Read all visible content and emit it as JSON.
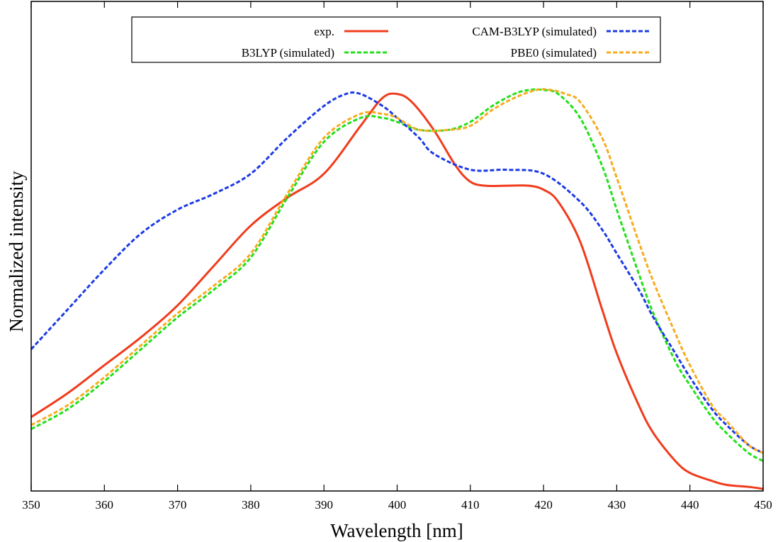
{
  "chart_data": {
    "type": "line",
    "title": "",
    "xlabel": "Wavelength [nm]",
    "ylabel": "Normalized intensity",
    "xlim": [
      350,
      450
    ],
    "ylim": [
      0.0,
      1.0
    ],
    "xticks": [
      "350",
      "360",
      "370",
      "380",
      "390",
      "400",
      "410",
      "420",
      "430",
      "440",
      "450"
    ],
    "grid": false,
    "legend": {
      "position": "top",
      "columns": 2
    },
    "series": [
      {
        "name": "exp.",
        "color": "#f03c1c",
        "dash": "solid",
        "x": [
          350,
          355,
          360,
          365,
          370,
          375,
          380,
          385,
          390,
          395,
          398,
          400,
          402,
          405,
          408,
          410,
          412,
          415,
          418,
          420,
          422,
          425,
          428,
          430,
          433,
          435,
          438,
          440,
          443,
          445,
          448,
          450
        ],
        "y": [
          0.18,
          0.24,
          0.31,
          0.38,
          0.46,
          0.56,
          0.66,
          0.73,
          0.79,
          0.91,
          0.98,
          0.99,
          0.97,
          0.9,
          0.81,
          0.77,
          0.76,
          0.76,
          0.76,
          0.75,
          0.72,
          0.62,
          0.45,
          0.34,
          0.21,
          0.14,
          0.07,
          0.04,
          0.02,
          0.01,
          0.005,
          0.0
        ]
      },
      {
        "name": "B3LYP (simulated)",
        "color": "#22e01a",
        "dash": "dashed",
        "x": [
          350,
          355,
          360,
          365,
          370,
          375,
          380,
          385,
          390,
          395,
          398,
          400,
          403,
          407,
          410,
          413,
          416,
          418,
          420,
          422,
          425,
          428,
          430,
          433,
          435,
          438,
          440,
          443,
          445,
          448,
          450
        ],
        "y": [
          0.15,
          0.2,
          0.27,
          0.35,
          0.43,
          0.5,
          0.58,
          0.73,
          0.87,
          0.93,
          0.93,
          0.92,
          0.9,
          0.9,
          0.92,
          0.96,
          0.99,
          1.0,
          1.0,
          0.99,
          0.93,
          0.81,
          0.7,
          0.54,
          0.44,
          0.32,
          0.26,
          0.18,
          0.14,
          0.09,
          0.07
        ]
      },
      {
        "name": "CAM-B3LYP (simulated)",
        "color": "#1c3ae6",
        "dash": "dashed",
        "x": [
          350,
          355,
          360,
          365,
          370,
          375,
          380,
          385,
          390,
          393,
          395,
          398,
          400,
          403,
          405,
          410,
          415,
          420,
          425,
          428,
          430,
          433,
          435,
          438,
          440,
          443,
          445,
          448,
          450
        ],
        "y": [
          0.35,
          0.45,
          0.55,
          0.64,
          0.7,
          0.74,
          0.79,
          0.88,
          0.96,
          0.99,
          0.99,
          0.96,
          0.93,
          0.88,
          0.84,
          0.8,
          0.8,
          0.79,
          0.72,
          0.65,
          0.59,
          0.5,
          0.43,
          0.34,
          0.28,
          0.2,
          0.16,
          0.11,
          0.09
        ]
      },
      {
        "name": "PBE0 (simulated)",
        "color": "#f7ac1e",
        "dash": "dashed",
        "x": [
          350,
          355,
          360,
          365,
          370,
          375,
          380,
          385,
          390,
          395,
          398,
          400,
          403,
          407,
          410,
          413,
          416,
          419,
          421,
          423,
          425,
          428,
          430,
          433,
          435,
          438,
          440,
          443,
          445,
          448,
          450
        ],
        "y": [
          0.16,
          0.21,
          0.28,
          0.36,
          0.44,
          0.51,
          0.59,
          0.74,
          0.88,
          0.94,
          0.94,
          0.93,
          0.9,
          0.9,
          0.91,
          0.95,
          0.98,
          1.0,
          1.0,
          0.99,
          0.97,
          0.88,
          0.78,
          0.62,
          0.52,
          0.39,
          0.31,
          0.21,
          0.17,
          0.11,
          0.09
        ]
      }
    ]
  }
}
